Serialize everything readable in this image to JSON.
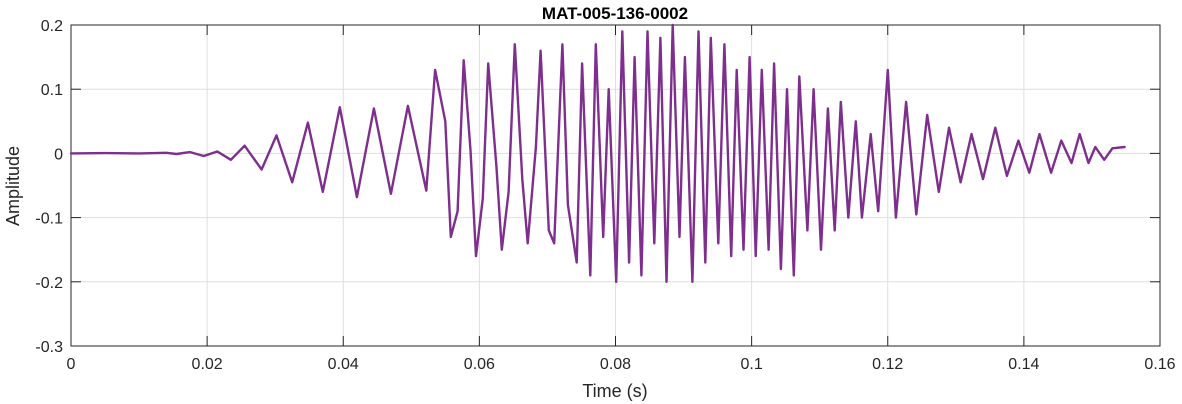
{
  "chart_data": {
    "type": "line",
    "title": "MAT-005-136-0002",
    "xlabel": "Time (s)",
    "ylabel": "Amplitude",
    "xlim": [
      0,
      0.16
    ],
    "ylim": [
      -0.3,
      0.2
    ],
    "xticks": [
      0,
      0.02,
      0.04,
      0.06,
      0.08,
      0.1,
      0.12,
      0.14,
      0.16
    ],
    "xtick_labels": [
      "0",
      "0.02",
      "0.04",
      "0.06",
      "0.08",
      "0.1",
      "0.12",
      "0.14",
      "0.16"
    ],
    "yticks": [
      -0.3,
      -0.2,
      -0.1,
      0,
      0.1,
      0.2
    ],
    "ytick_labels": [
      "-0.3",
      "-0.2",
      "-0.1",
      "0",
      "0.1",
      "0.2"
    ],
    "grid": true,
    "colors": {
      "line": "#7E2F8E",
      "grid": "#dfdfdf",
      "axes": "#262626"
    },
    "series": [
      {
        "x": [
          0,
          0.005,
          0.01,
          0.014,
          0.0155,
          0.0175,
          0.0195,
          0.0215,
          0.0235,
          0.0255,
          0.028,
          0.0302,
          0.0325,
          0.0348,
          0.037,
          0.0395,
          0.042,
          0.0445,
          0.047,
          0.0495,
          0.0522,
          0.0535,
          0.055,
          0.0558,
          0.0568,
          0.0577,
          0.0587,
          0.0595,
          0.0605,
          0.0613,
          0.0625,
          0.0633,
          0.0643,
          0.0652,
          0.0663,
          0.0671,
          0.0683,
          0.069,
          0.0702,
          0.071,
          0.0722,
          0.073,
          0.0743,
          0.0751,
          0.0763,
          0.0771,
          0.0782,
          0.079,
          0.0801,
          0.081,
          0.082,
          0.0828,
          0.0838,
          0.0847,
          0.0857,
          0.0866,
          0.0875,
          0.0884,
          0.0894,
          0.0902,
          0.0913,
          0.0922,
          0.0932,
          0.094,
          0.0951,
          0.096,
          0.097,
          0.0978,
          0.0988,
          0.0997,
          0.1006,
          0.1015,
          0.1025,
          0.1033,
          0.1043,
          0.1052,
          0.1062,
          0.107,
          0.1082,
          0.1091,
          0.1102,
          0.1112,
          0.1122,
          0.1131,
          0.1142,
          0.1153,
          0.1162,
          0.1175,
          0.1186,
          0.12,
          0.1212,
          0.1227,
          0.1242,
          0.1258,
          0.1275,
          0.129,
          0.1307,
          0.1323,
          0.134,
          0.1358,
          0.1375,
          0.1392,
          0.1408,
          0.1423,
          0.144,
          0.1455,
          0.147,
          0.1482,
          0.1495,
          0.1505,
          0.1518,
          0.153,
          0.1548
        ],
        "y": [
          0,
          0.0005,
          0,
          0.001,
          -0.001,
          0.002,
          -0.004,
          0.003,
          -0.01,
          0.012,
          -0.025,
          0.028,
          -0.045,
          0.048,
          -0.06,
          0.072,
          -0.068,
          0.07,
          -0.063,
          0.074,
          -0.058,
          0.13,
          0.05,
          -0.13,
          -0.09,
          0.145,
          0.005,
          -0.16,
          -0.07,
          0.14,
          -0.02,
          -0.15,
          -0.06,
          0.17,
          -0.04,
          -0.14,
          0.01,
          0.16,
          -0.12,
          -0.14,
          0.17,
          -0.08,
          -0.17,
          0.14,
          -0.19,
          0.17,
          -0.13,
          0.1,
          -0.2,
          0.19,
          -0.17,
          0.15,
          -0.19,
          0.19,
          -0.14,
          0.18,
          -0.2,
          0.2,
          -0.13,
          0.15,
          -0.2,
          0.19,
          -0.17,
          0.18,
          -0.14,
          0.17,
          -0.16,
          0.13,
          -0.15,
          0.15,
          -0.16,
          0.13,
          -0.15,
          0.14,
          -0.18,
          0.1,
          -0.19,
          0.12,
          -0.12,
          0.1,
          -0.15,
          0.07,
          -0.12,
          0.08,
          -0.1,
          0.05,
          -0.1,
          0.03,
          -0.09,
          0.13,
          -0.1,
          0.08,
          -0.095,
          0.06,
          -0.06,
          0.04,
          -0.045,
          0.03,
          -0.04,
          0.04,
          -0.035,
          0.02,
          -0.03,
          0.03,
          -0.03,
          0.02,
          -0.015,
          0.03,
          -0.015,
          0.01,
          -0.01,
          0.008,
          0.01
        ]
      }
    ]
  }
}
